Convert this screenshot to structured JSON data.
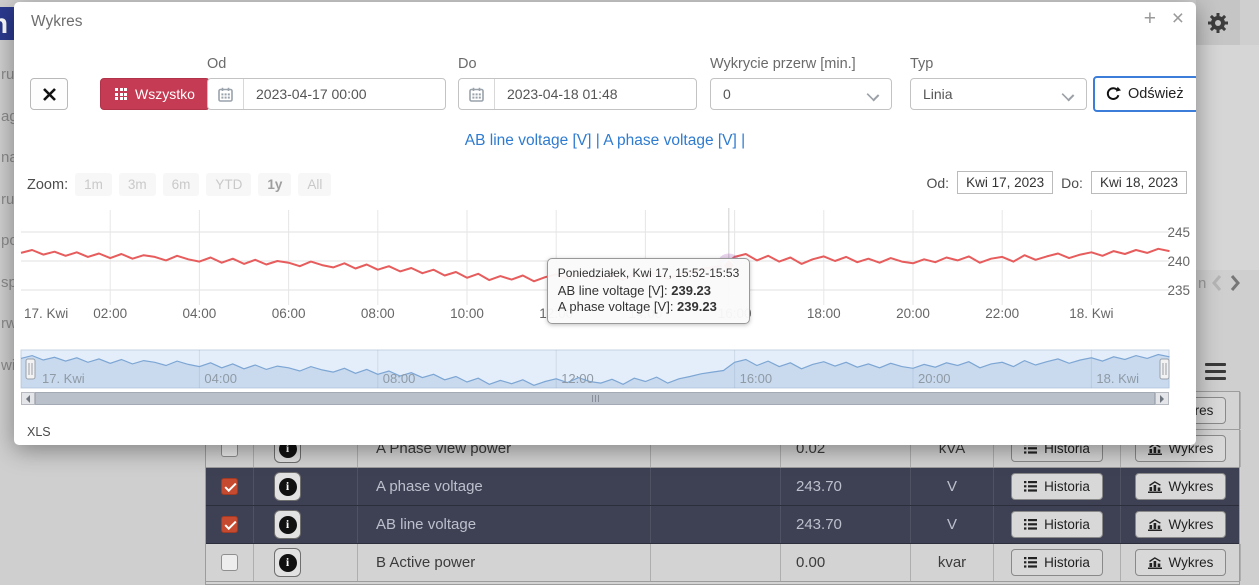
{
  "page": {
    "logo_fragment": "n",
    "sidebar_fragments": [
      "ru",
      "ag",
      "na",
      "ru",
      "po",
      "sp",
      "rw",
      "wi"
    ],
    "pager_text_fragment": "n"
  },
  "modal": {
    "title": "Wykres",
    "maximize_glyph": "+",
    "close_glyph": "×",
    "toolbar": {
      "all_button_label": "Wszystko",
      "from_label": "Od",
      "from_value": "2023-04-17 00:00",
      "to_label": "Do",
      "to_value": "2023-04-18 01:48",
      "gap_label": "Wykrycie przerw [min.]",
      "gap_value": "0",
      "type_label": "Typ",
      "type_value": "Linia",
      "refresh_label": "Odśwież"
    },
    "series_links": [
      "AB line voltage [V]",
      "A phase voltage [V]"
    ],
    "separator": "|",
    "xls_label": "XLS"
  },
  "chart_data": {
    "type": "line",
    "x_unit": "hours from 2023-04-17 00:00",
    "x_start": 0,
    "x_step": 0.25,
    "x_tick_hours": [
      0,
      2,
      4,
      6,
      8,
      10,
      12,
      14,
      16,
      18,
      20,
      22,
      24
    ],
    "x_axis_ticks": [
      "17. Kwi",
      "02:00",
      "04:00",
      "06:00",
      "08:00",
      "10:00",
      "12:00",
      "14:00",
      "16:00",
      "18:00",
      "20:00",
      "22:00",
      "18. Kwi"
    ],
    "y_ticks": [
      235,
      240,
      245
    ],
    "y_axis_side": "right",
    "ylim": [
      232.5,
      248.5
    ],
    "series_names": [
      "AB line voltage [V]",
      "A phase voltage [V]"
    ],
    "series_note": "both series overlap exactly at this zoom; single red trace visible",
    "values": [
      241.4,
      241.9,
      241.1,
      241.6,
      240.9,
      241.5,
      240.7,
      241.3,
      240.5,
      241.2,
      240.4,
      241.0,
      240.7,
      240.1,
      240.9,
      240.3,
      239.9,
      240.6,
      239.7,
      240.4,
      239.5,
      240.2,
      239.4,
      240.0,
      239.7,
      239.1,
      239.9,
      239.3,
      238.9,
      239.6,
      238.7,
      239.4,
      238.5,
      239.1,
      238.2,
      238.8,
      237.9,
      238.5,
      237.5,
      238.1,
      237.1,
      237.8,
      236.7,
      237.4,
      236.8,
      237.5,
      236.5,
      237.2,
      237.7,
      237.0,
      237.9,
      237.2,
      236.9,
      237.6,
      236.7,
      237.8,
      237.2,
      238.0,
      236.9,
      237.7,
      238.1,
      238.6,
      238.9,
      239.2,
      240.7,
      241.2,
      240.1,
      240.9,
      239.9,
      240.6,
      239.5,
      240.3,
      240.8,
      240.0,
      240.7,
      239.8,
      240.4,
      239.7,
      240.5,
      239.9,
      239.6,
      240.3,
      239.8,
      240.6,
      240.1,
      240.8,
      239.7,
      240.4,
      240.7,
      239.9,
      241.0,
      240.2,
      240.8,
      241.3,
      240.5,
      241.1,
      241.5,
      240.9,
      241.7,
      241.2,
      241.9,
      241.4,
      242.1,
      241.7
    ],
    "selected_point": {
      "x_hour": 15.87,
      "value": 239.23,
      "tooltip_header": "Poniedziałek, Kwi 17, 15:52-15:53",
      "tooltip_rows": [
        {
          "label": "AB line voltage [V]",
          "value": "239.23"
        },
        {
          "label": "A phase voltage [V]",
          "value": "239.23"
        }
      ]
    },
    "zoom_label": "Zoom:",
    "zoom_buttons": [
      "1m",
      "3m",
      "6m",
      "YTD",
      "1y",
      "All"
    ],
    "range_from": {
      "label": "Od:",
      "value": "Kwi 17, 2023"
    },
    "range_to": {
      "label": "Do:",
      "value": "Kwi 18, 2023"
    },
    "navigator_ticks": {
      "hours": [
        0,
        4,
        8,
        12,
        16,
        20,
        24
      ],
      "labels": [
        "17. Kwi",
        "04:00",
        "08:00",
        "12:00",
        "16:00",
        "20:00",
        "18. Kwi"
      ]
    },
    "legend_position": "none",
    "grid": true
  },
  "table": {
    "history_label": "Historia",
    "chart_label": "Wykres",
    "rows": [
      {
        "checked": false,
        "dark": false,
        "name": "A Phase view power",
        "value": "0.02",
        "unit": "kVA"
      },
      {
        "checked": true,
        "dark": true,
        "name": "A phase voltage",
        "value": "243.70",
        "unit": "V"
      },
      {
        "checked": true,
        "dark": true,
        "name": "AB line voltage",
        "value": "243.70",
        "unit": "V"
      },
      {
        "checked": false,
        "dark": false,
        "name": "B Active power",
        "value": "0.00",
        "unit": "kvar"
      }
    ]
  },
  "colors": {
    "accent_red_button": "#c43b53",
    "series_red": "#e75c5c",
    "navigator_blue": "#7da6d4",
    "link_blue": "#2e7bd0",
    "checkbox_checked": "#c64a2f",
    "dark_row": "#3e4154",
    "focus_blue": "#3b7dd8"
  }
}
